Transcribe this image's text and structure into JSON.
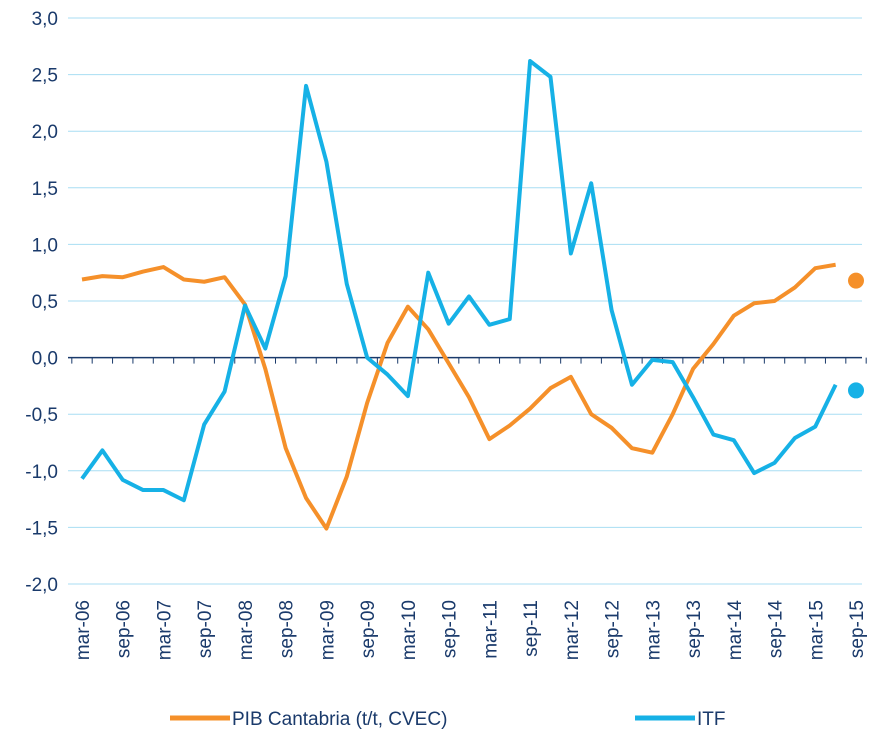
{
  "chart_data": {
    "type": "line",
    "categories": [
      "mar-06",
      null,
      "sep-06",
      null,
      "mar-07",
      null,
      "sep-07",
      null,
      "mar-08",
      null,
      "sep-08",
      null,
      "mar-09",
      null,
      "sep-09",
      null,
      "mar-10",
      null,
      "sep-10",
      null,
      "mar-11",
      null,
      "sep-11",
      null,
      "mar-12",
      null,
      "sep-12",
      null,
      "mar-13",
      null,
      "sep-13",
      null,
      "mar-14",
      null,
      "sep-14",
      null,
      "mar-15",
      null,
      "sep-15"
    ],
    "series": [
      {
        "name": "PIB Cantabria (t/t, CVEC)",
        "color": "#f5902a",
        "values": [
          0.69,
          0.72,
          0.71,
          0.76,
          0.8,
          0.69,
          0.67,
          0.71,
          0.47,
          -0.1,
          -0.8,
          -1.24,
          -1.51,
          -1.05,
          -0.4,
          0.13,
          0.45,
          0.25,
          -0.05,
          -0.35,
          -0.72,
          -0.6,
          -0.45,
          -0.27,
          -0.17,
          -0.5,
          -0.62,
          -0.8,
          -0.84,
          -0.5,
          -0.1,
          0.12,
          0.37,
          0.48,
          0.5,
          0.62,
          0.79,
          0.82,
          null
        ],
        "marker_values": [
          null,
          null,
          null,
          null,
          null,
          null,
          null,
          null,
          null,
          null,
          null,
          null,
          null,
          null,
          null,
          null,
          null,
          null,
          null,
          null,
          null,
          null,
          null,
          null,
          null,
          null,
          null,
          null,
          null,
          null,
          null,
          null,
          null,
          null,
          null,
          null,
          null,
          null,
          0.68
        ]
      },
      {
        "name": "ITF",
        "color": "#16b1e6",
        "values": [
          -1.07,
          -0.82,
          -1.08,
          -1.17,
          -1.17,
          -1.26,
          -0.59,
          -0.3,
          0.46,
          0.08,
          0.72,
          2.4,
          1.73,
          0.65,
          0.0,
          -0.15,
          -0.34,
          0.75,
          0.3,
          0.54,
          0.29,
          0.34,
          2.62,
          2.48,
          0.92,
          1.54,
          0.42,
          -0.24,
          -0.02,
          -0.04,
          -0.35,
          -0.68,
          -0.73,
          -1.02,
          -0.93,
          -0.71,
          -0.61,
          -0.24,
          null
        ],
        "marker_values": [
          null,
          null,
          null,
          null,
          null,
          null,
          null,
          null,
          null,
          null,
          null,
          null,
          null,
          null,
          null,
          null,
          null,
          null,
          null,
          null,
          null,
          null,
          null,
          null,
          null,
          null,
          null,
          null,
          null,
          null,
          null,
          null,
          null,
          null,
          null,
          null,
          null,
          null,
          -0.29
        ]
      }
    ],
    "ylim": [
      -2,
      3
    ],
    "yticks": [
      {
        "value": -2,
        "label": "-2,0"
      },
      {
        "value": -1.5,
        "label": "-1,5"
      },
      {
        "value": -1,
        "label": "-1,0"
      },
      {
        "value": -0.5,
        "label": "-0,5"
      },
      {
        "value": 0,
        "label": "0,0"
      },
      {
        "value": 0.5,
        "label": "0,5"
      },
      {
        "value": 1,
        "label": "1,0"
      },
      {
        "value": 1.5,
        "label": "1,5"
      },
      {
        "value": 2,
        "label": "2,0"
      },
      {
        "value": 2.5,
        "label": "2,5"
      },
      {
        "value": 3,
        "label": "3,0"
      }
    ],
    "grid": true,
    "legend": "bottom"
  }
}
